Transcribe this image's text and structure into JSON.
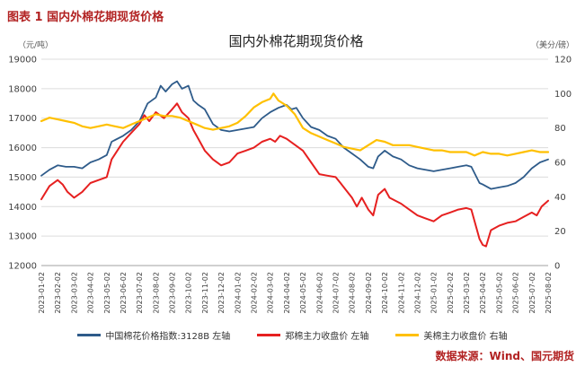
{
  "report": {
    "caption": "图表 1 国内外棉花期现货价格",
    "source": "数据来源：Wind、国元期货",
    "accent_color": "#B22222"
  },
  "chart_data": {
    "type": "line",
    "title": "国内外棉花期现货价格",
    "grid": true,
    "legend_position": "bottom",
    "left_axis": {
      "unit": "（元/吨）",
      "min": 12000,
      "max": 19000,
      "tick_step": 1000
    },
    "right_axis": {
      "unit": "（美分/磅）",
      "min": 0,
      "max": 120,
      "tick_step": 20
    },
    "categories": [
      "2023-01-02",
      "2023-02-02",
      "2023-03-02",
      "2023-04-02",
      "2023-05-02",
      "2023-06-02",
      "2023-07-02",
      "2023-08-02",
      "2023-09-02",
      "2023-10-02",
      "2023-11-02",
      "2023-12-02",
      "2024-01-02",
      "2024-02-02",
      "2024-03-02",
      "2024-04-02",
      "2024-05-02",
      "2024-06-02",
      "2024-07-02",
      "2024-08-02",
      "2024-09-02",
      "2024-10-02",
      "2024-11-02",
      "2024-12-02",
      "2025-01-02",
      "2025-02-02",
      "2025-03-02",
      "2025-04-02",
      "2025-05-02",
      "2025-06-02",
      "2025-07-02",
      "2025-08-02"
    ],
    "series": [
      {
        "name": "中国棉花价格指数:3128B 左轴",
        "axis": "left",
        "color": "#2E5B8A",
        "stroke_width": 1.8,
        "points": [
          [
            0,
            15050
          ],
          [
            0.5,
            15250
          ],
          [
            1,
            15400
          ],
          [
            1.5,
            15350
          ],
          [
            2,
            15350
          ],
          [
            2.5,
            15300
          ],
          [
            3,
            15500
          ],
          [
            3.5,
            15600
          ],
          [
            4,
            15750
          ],
          [
            4.3,
            16200
          ],
          [
            5,
            16400
          ],
          [
            5.5,
            16600
          ],
          [
            6,
            16900
          ],
          [
            6.5,
            17500
          ],
          [
            7,
            17700
          ],
          [
            7.3,
            18100
          ],
          [
            7.6,
            17900
          ],
          [
            8,
            18150
          ],
          [
            8.3,
            18250
          ],
          [
            8.6,
            18000
          ],
          [
            9,
            18100
          ],
          [
            9.3,
            17600
          ],
          [
            9.6,
            17450
          ],
          [
            10,
            17300
          ],
          [
            10.5,
            16800
          ],
          [
            11,
            16600
          ],
          [
            11.5,
            16550
          ],
          [
            12,
            16600
          ],
          [
            12.5,
            16650
          ],
          [
            13,
            16700
          ],
          [
            13.5,
            17000
          ],
          [
            14,
            17200
          ],
          [
            14.5,
            17350
          ],
          [
            15,
            17450
          ],
          [
            15.3,
            17300
          ],
          [
            15.6,
            17350
          ],
          [
            16,
            17000
          ],
          [
            16.5,
            16700
          ],
          [
            17,
            16600
          ],
          [
            17.5,
            16400
          ],
          [
            18,
            16300
          ],
          [
            18.5,
            16000
          ],
          [
            19,
            15800
          ],
          [
            19.5,
            15600
          ],
          [
            20,
            15350
          ],
          [
            20.3,
            15300
          ],
          [
            20.6,
            15700
          ],
          [
            21,
            15900
          ],
          [
            21.5,
            15700
          ],
          [
            22,
            15600
          ],
          [
            22.5,
            15400
          ],
          [
            23,
            15300
          ],
          [
            23.5,
            15250
          ],
          [
            24,
            15200
          ],
          [
            24.5,
            15250
          ],
          [
            25,
            15300
          ],
          [
            25.5,
            15350
          ],
          [
            26,
            15400
          ],
          [
            26.3,
            15350
          ],
          [
            26.8,
            14800
          ],
          [
            27,
            14750
          ],
          [
            27.5,
            14600
          ],
          [
            28,
            14650
          ],
          [
            28.5,
            14700
          ],
          [
            29,
            14800
          ],
          [
            29.5,
            15000
          ],
          [
            30,
            15300
          ],
          [
            30.5,
            15500
          ],
          [
            31,
            15600
          ]
        ]
      },
      {
        "name": "郑棉主力收盘价 左轴",
        "axis": "left",
        "color": "#E62020",
        "stroke_width": 2,
        "points": [
          [
            0,
            14250
          ],
          [
            0.5,
            14700
          ],
          [
            1,
            14900
          ],
          [
            1.3,
            14750
          ],
          [
            1.6,
            14500
          ],
          [
            2,
            14300
          ],
          [
            2.5,
            14500
          ],
          [
            3,
            14800
          ],
          [
            3.5,
            14900
          ],
          [
            4,
            15000
          ],
          [
            4.3,
            15600
          ],
          [
            5,
            16200
          ],
          [
            5.5,
            16500
          ],
          [
            6,
            16800
          ],
          [
            6.3,
            17100
          ],
          [
            6.6,
            16900
          ],
          [
            7,
            17200
          ],
          [
            7.5,
            17000
          ],
          [
            8,
            17300
          ],
          [
            8.3,
            17500
          ],
          [
            8.6,
            17200
          ],
          [
            9,
            17000
          ],
          [
            9.3,
            16600
          ],
          [
            9.6,
            16300
          ],
          [
            10,
            15900
          ],
          [
            10.5,
            15600
          ],
          [
            11,
            15400
          ],
          [
            11.5,
            15500
          ],
          [
            12,
            15800
          ],
          [
            12.5,
            15900
          ],
          [
            13,
            16000
          ],
          [
            13.5,
            16200
          ],
          [
            14,
            16300
          ],
          [
            14.3,
            16200
          ],
          [
            14.6,
            16400
          ],
          [
            15,
            16300
          ],
          [
            15.5,
            16100
          ],
          [
            16,
            15900
          ],
          [
            16.5,
            15500
          ],
          [
            17,
            15100
          ],
          [
            17.5,
            15050
          ],
          [
            18,
            15000
          ],
          [
            18.3,
            14800
          ],
          [
            19,
            14300
          ],
          [
            19.3,
            14000
          ],
          [
            19.6,
            14300
          ],
          [
            20,
            13900
          ],
          [
            20.3,
            13700
          ],
          [
            20.6,
            14400
          ],
          [
            21,
            14600
          ],
          [
            21.3,
            14300
          ],
          [
            22,
            14100
          ],
          [
            22.5,
            13900
          ],
          [
            23,
            13700
          ],
          [
            23.5,
            13600
          ],
          [
            24,
            13500
          ],
          [
            24.5,
            13700
          ],
          [
            25,
            13800
          ],
          [
            25.5,
            13900
          ],
          [
            26,
            13950
          ],
          [
            26.3,
            13900
          ],
          [
            26.8,
            12900
          ],
          [
            27,
            12700
          ],
          [
            27.2,
            12650
          ],
          [
            27.5,
            13200
          ],
          [
            28,
            13350
          ],
          [
            28.5,
            13450
          ],
          [
            29,
            13500
          ],
          [
            29.5,
            13650
          ],
          [
            30,
            13800
          ],
          [
            30.3,
            13700
          ],
          [
            30.6,
            14000
          ],
          [
            31,
            14200
          ]
        ]
      },
      {
        "name": "美棉主力收盘价 右轴",
        "axis": "right",
        "color": "#FFC000",
        "stroke_width": 2.2,
        "points": [
          [
            0,
            84
          ],
          [
            0.5,
            86
          ],
          [
            1,
            85
          ],
          [
            1.5,
            84
          ],
          [
            2,
            83
          ],
          [
            2.5,
            81
          ],
          [
            3,
            80
          ],
          [
            3.5,
            81
          ],
          [
            4,
            82
          ],
          [
            4.5,
            81
          ],
          [
            5,
            80
          ],
          [
            5.5,
            82
          ],
          [
            6,
            84
          ],
          [
            6.5,
            86
          ],
          [
            7,
            88
          ],
          [
            7.5,
            87
          ],
          [
            8,
            87
          ],
          [
            8.5,
            86
          ],
          [
            9,
            84
          ],
          [
            9.5,
            82
          ],
          [
            10,
            80
          ],
          [
            10.5,
            79
          ],
          [
            11,
            80
          ],
          [
            11.5,
            81
          ],
          [
            12,
            83
          ],
          [
            12.5,
            87
          ],
          [
            13,
            92
          ],
          [
            13.5,
            95
          ],
          [
            14,
            97
          ],
          [
            14.2,
            100
          ],
          [
            14.5,
            96
          ],
          [
            15,
            93
          ],
          [
            15.5,
            88
          ],
          [
            16,
            80
          ],
          [
            16.5,
            77
          ],
          [
            17,
            75
          ],
          [
            17.5,
            73
          ],
          [
            18,
            71
          ],
          [
            18.5,
            69
          ],
          [
            19,
            68
          ],
          [
            19.5,
            67
          ],
          [
            20,
            70
          ],
          [
            20.5,
            73
          ],
          [
            21,
            72
          ],
          [
            21.5,
            70
          ],
          [
            22,
            70
          ],
          [
            22.5,
            70
          ],
          [
            23,
            69
          ],
          [
            23.5,
            68
          ],
          [
            24,
            67
          ],
          [
            24.5,
            67
          ],
          [
            25,
            66
          ],
          [
            25.5,
            66
          ],
          [
            26,
            66
          ],
          [
            26.5,
            64
          ],
          [
            27,
            66
          ],
          [
            27.5,
            65
          ],
          [
            28,
            65
          ],
          [
            28.5,
            64
          ],
          [
            29,
            65
          ],
          [
            29.5,
            66
          ],
          [
            30,
            67
          ],
          [
            30.5,
            66
          ],
          [
            31,
            66
          ]
        ]
      }
    ]
  }
}
